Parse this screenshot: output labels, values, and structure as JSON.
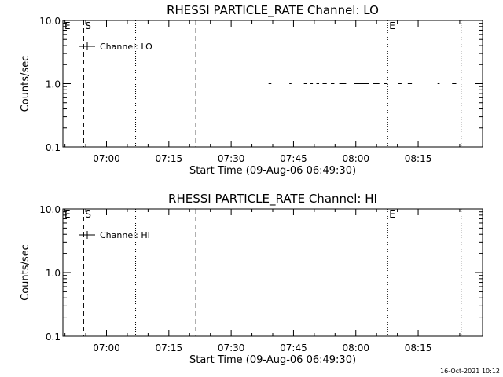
{
  "footer": "16-Oct-2021 10:12",
  "chart_data": [
    {
      "type": "line",
      "title": "RHESSI PARTICLE_RATE Channel: LO",
      "xlabel": "Start Time (09-Aug-06 06:49:30)",
      "ylabel": "Counts/sec",
      "yscale": "log",
      "ylim": [
        0.1,
        10.0
      ],
      "yticks": [
        {
          "v": 10.0,
          "label": "10.0"
        },
        {
          "v": 1.0,
          "label": "1.0"
        },
        {
          "v": 0.1,
          "label": "0.1"
        }
      ],
      "xlim": [
        "06:49:30",
        "08:30:30"
      ],
      "xticks": [
        "07:00",
        "07:15",
        "07:30",
        "07:45",
        "08:00",
        "08:15"
      ],
      "legend": {
        "label": "Channel: LO",
        "placement": "top-left"
      },
      "series": [
        {
          "name": "Channel: LO",
          "segments": [
            {
              "x": [
                "07:39:00",
                "07:39:40"
              ],
              "y": [
                1.0,
                1.0
              ]
            },
            {
              "x": [
                "07:44:00",
                "07:44:30"
              ],
              "y": [
                1.0,
                1.0
              ]
            },
            {
              "x": [
                "07:47:30",
                "07:48:10"
              ],
              "y": [
                1.0,
                1.0
              ]
            },
            {
              "x": [
                "07:49:00",
                "07:49:40"
              ],
              "y": [
                1.0,
                1.0
              ]
            },
            {
              "x": [
                "07:50:30",
                "07:51:10"
              ],
              "y": [
                1.0,
                1.0
              ]
            },
            {
              "x": [
                "07:52:00",
                "07:53:00"
              ],
              "y": [
                1.0,
                1.0
              ]
            },
            {
              "x": [
                "07:54:00",
                "07:54:50"
              ],
              "y": [
                1.0,
                1.0
              ]
            },
            {
              "x": [
                "07:56:00",
                "07:57:40"
              ],
              "y": [
                1.0,
                1.0
              ]
            },
            {
              "x": [
                "07:59:40",
                "08:03:10"
              ],
              "y": [
                1.0,
                1.0
              ]
            },
            {
              "x": [
                "08:04:10",
                "08:05:40"
              ],
              "y": [
                1.0,
                1.0
              ]
            },
            {
              "x": [
                "08:06:40",
                "08:07:40"
              ],
              "y": [
                1.0,
                1.0
              ]
            },
            {
              "x": [
                "08:10:10",
                "08:11:00"
              ],
              "y": [
                1.0,
                1.0
              ]
            },
            {
              "x": [
                "08:12:30",
                "08:13:30"
              ],
              "y": [
                1.0,
                1.0
              ]
            },
            {
              "x": [
                "08:19:40",
                "08:20:10"
              ],
              "y": [
                1.0,
                1.0
              ]
            },
            {
              "x": [
                "08:23:10",
                "08:24:10"
              ],
              "y": [
                1.0,
                1.0
              ]
            }
          ]
        }
      ],
      "vlines": [
        {
          "x": "06:54:30",
          "style": "dashed",
          "label": "S"
        },
        {
          "x": "07:07:00",
          "style": "dotted",
          "label": ""
        },
        {
          "x": "07:21:30",
          "style": "dashed",
          "label": ""
        },
        {
          "x": "08:07:40",
          "style": "dotted",
          "label": "E"
        },
        {
          "x": "08:25:20",
          "style": "dotted",
          "label": ""
        }
      ],
      "corner_label": "E"
    },
    {
      "type": "line",
      "title": "RHESSI PARTICLE_RATE Channel: HI",
      "xlabel": "Start Time (09-Aug-06 06:49:30)",
      "ylabel": "Counts/sec",
      "yscale": "log",
      "ylim": [
        0.1,
        10.0
      ],
      "yticks": [
        {
          "v": 10.0,
          "label": "10.0"
        },
        {
          "v": 1.0,
          "label": "1.0"
        },
        {
          "v": 0.1,
          "label": "0.1"
        }
      ],
      "xlim": [
        "06:49:30",
        "08:30:30"
      ],
      "xticks": [
        "07:00",
        "07:15",
        "07:30",
        "07:45",
        "08:00",
        "08:15"
      ],
      "legend": {
        "label": "Channel: HI",
        "placement": "top-left"
      },
      "series": [
        {
          "name": "Channel: HI",
          "segments": []
        }
      ],
      "vlines": [
        {
          "x": "06:54:30",
          "style": "dashed",
          "label": "S"
        },
        {
          "x": "07:07:00",
          "style": "dotted",
          "label": ""
        },
        {
          "x": "07:21:30",
          "style": "dashed",
          "label": ""
        },
        {
          "x": "08:07:40",
          "style": "dotted",
          "label": "E"
        },
        {
          "x": "08:25:20",
          "style": "dotted",
          "label": ""
        }
      ],
      "corner_label": "E"
    }
  ]
}
